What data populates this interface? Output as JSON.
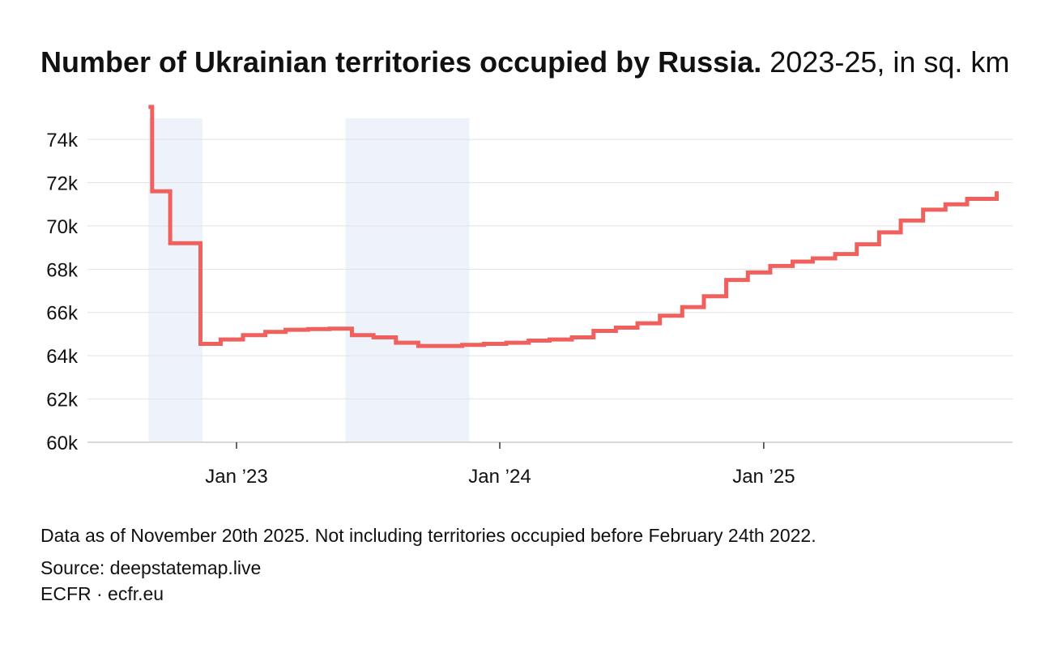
{
  "title": {
    "bold": "Number of Ukrainian territories occupied by Russia.",
    "subtitle": "2023-25, in sq. km"
  },
  "footer": {
    "note": "Data as of November 20th 2025. Not including territories occupied before February 24th 2022.",
    "source": "Source: deepstatemap.live",
    "credit": "ECFR · ecfr.eu"
  },
  "colors": {
    "line": "#F0615E",
    "shade": "#EEF3FB",
    "grid": "#E2E2E2",
    "axis": "#CCCCCC"
  },
  "chart_data": {
    "type": "line",
    "step": true,
    "ylim": [
      60000,
      75500
    ],
    "xlim": [
      "2022-09-15",
      "2025-12-31"
    ],
    "grid": true,
    "y_ticks": [
      {
        "value": 60000,
        "label": "60k"
      },
      {
        "value": 62000,
        "label": "62k"
      },
      {
        "value": 64000,
        "label": "64k"
      },
      {
        "value": 66000,
        "label": "66k"
      },
      {
        "value": 68000,
        "label": "68k"
      },
      {
        "value": 70000,
        "label": "70k"
      },
      {
        "value": 72000,
        "label": "72k"
      },
      {
        "value": 74000,
        "label": "74k"
      }
    ],
    "x_ticks": [
      {
        "value": "2023-01-01",
        "label": "Jan ’23"
      },
      {
        "value": "2024-01-01",
        "label": "Jan ’24"
      },
      {
        "value": "2025-01-01",
        "label": "Jan ’25"
      }
    ],
    "shaded_periods": [
      {
        "start": "2022-09-01",
        "end": "2022-11-15"
      },
      {
        "start": "2023-06-01",
        "end": "2023-11-20"
      }
    ],
    "series": [
      {
        "x": [
          "2022-09-01",
          "2022-09-06",
          "2022-10-01",
          "2022-11-01",
          "2022-11-12",
          "2022-12-10",
          "2023-01-10",
          "2023-02-10",
          "2023-03-10",
          "2023-04-10",
          "2023-05-10",
          "2023-06-10",
          "2023-07-10",
          "2023-08-10",
          "2023-09-10",
          "2023-10-10",
          "2023-11-10",
          "2023-12-10",
          "2024-01-10",
          "2024-02-10",
          "2024-03-10",
          "2024-04-10",
          "2024-05-10",
          "2024-06-10",
          "2024-07-10",
          "2024-08-10",
          "2024-09-10",
          "2024-10-10",
          "2024-11-10",
          "2024-12-10",
          "2025-01-10",
          "2025-02-10",
          "2025-03-10",
          "2025-04-10",
          "2025-05-10",
          "2025-06-10",
          "2025-07-10",
          "2025-08-10",
          "2025-09-10",
          "2025-10-10",
          "2025-11-20"
        ],
        "values": [
          75500,
          71600,
          69200,
          69200,
          64550,
          64750,
          64950,
          65100,
          65200,
          65230,
          65250,
          64950,
          64850,
          64600,
          64450,
          64450,
          64500,
          64550,
          64600,
          64700,
          64750,
          64850,
          65150,
          65300,
          65500,
          65850,
          66250,
          66750,
          67500,
          67850,
          68150,
          68350,
          68500,
          68700,
          69150,
          69700,
          70250,
          70750,
          71000,
          71250,
          71600
        ]
      }
    ]
  }
}
